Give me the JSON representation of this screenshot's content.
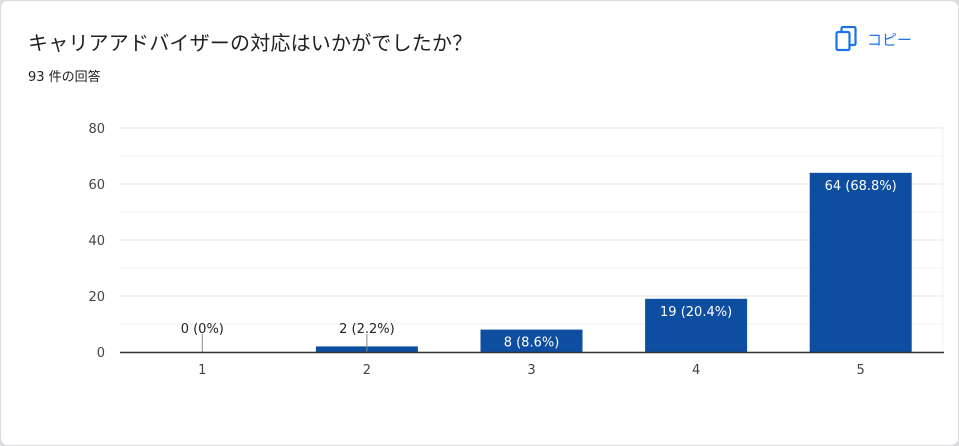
{
  "question": {
    "title": "キャリアアドバイザーの対応はいかがでしたか？",
    "response_count": "93 件の回答"
  },
  "toolbar": {
    "copy_label": "コピー",
    "copy_icon": "copy-icon"
  },
  "colors": {
    "bar": "#0e4ea1",
    "accent": "#1a73e8",
    "grid": "#ececec",
    "axis": "#333333"
  },
  "chart_data": {
    "type": "bar",
    "categories": [
      "1",
      "2",
      "3",
      "4",
      "5"
    ],
    "values": [
      0,
      2,
      8,
      19,
      64
    ],
    "data_labels": [
      "0 (0%)",
      "2 (2.2%)",
      "8 (8.6%)",
      "19 (20.4%)",
      "64 (68.8%)"
    ],
    "ylim": [
      0,
      80
    ],
    "yticks": [
      "0",
      "20",
      "40",
      "60",
      "80"
    ],
    "xlabel": "",
    "ylabel": "",
    "grid": true
  }
}
